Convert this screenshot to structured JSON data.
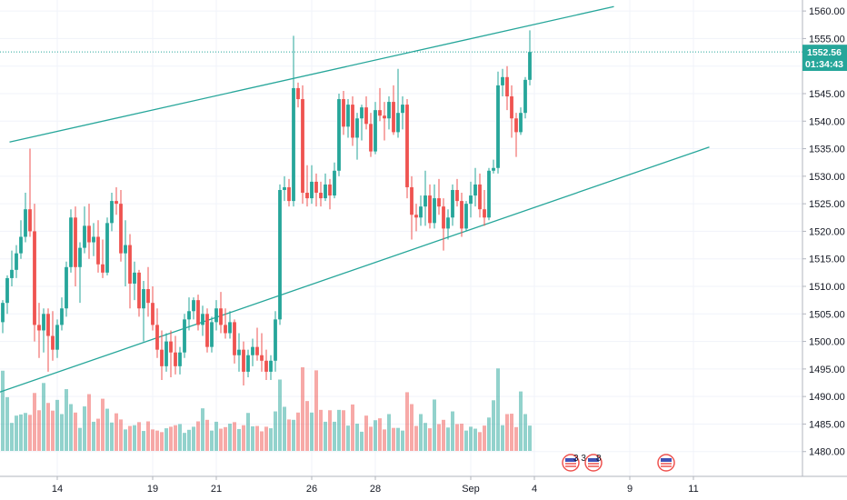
{
  "chart_data": {
    "type": "candlestick",
    "y_axis": {
      "range": [
        1475.5,
        1562
      ],
      "ticks": [
        "1560.00",
        "1555.00",
        "1550.00",
        "1545.00",
        "1540.00",
        "1535.00",
        "1530.00",
        "1525.00",
        "1520.00",
        "1515.00",
        "1510.00",
        "1505.00",
        "1500.00",
        "1495.00",
        "1490.00",
        "1485.00",
        "1480.00"
      ],
      "tick_values": [
        1560,
        1555,
        1550,
        1545,
        1540,
        1535,
        1530,
        1525,
        1520,
        1515,
        1510,
        1505,
        1500,
        1495,
        1490,
        1485,
        1480
      ]
    },
    "x_axis": {
      "ticks": [
        "14",
        "19",
        "21",
        "26",
        "28",
        "Sep",
        "4",
        "9",
        "11"
      ],
      "tick_index": [
        12,
        33,
        47,
        68,
        82,
        103,
        117,
        138,
        152
      ]
    },
    "last_price": {
      "label": "1552.56",
      "value": 1552.56
    },
    "countdown": "01:34:43",
    "up_color": "#26a69a",
    "down_color": "#ef5350",
    "trend_lines": [
      {
        "color": "#26a69a",
        "points": [
          [
            1.5,
            1536.2
          ],
          [
            134.5,
            1560.8
          ]
        ]
      },
      {
        "color": "#26a69a",
        "points": [
          [
            -1,
            1490.7
          ],
          [
            155.5,
            1535.3
          ]
        ]
      }
    ],
    "events": [
      {
        "index": 125,
        "label": "3 3 2"
      },
      {
        "index": 130,
        "label": "8"
      },
      {
        "index": 146,
        "label": ""
      }
    ],
    "candles": [
      [
        1503.5,
        1507.5,
        1501.5,
        1507.0,
        20.9
      ],
      [
        1507.0,
        1512.0,
        1505.0,
        1511.5,
        14.0
      ],
      [
        1511.5,
        1516.5,
        1510.0,
        1513.0,
        7.3
      ],
      [
        1513.0,
        1517.5,
        1511.5,
        1516.0,
        9.2
      ],
      [
        1516.0,
        1522.0,
        1515.0,
        1519.0,
        9.5
      ],
      [
        1519.0,
        1527.0,
        1518.0,
        1524.0,
        9.9
      ],
      [
        1524.0,
        1535.0,
        1519.0,
        1520.0,
        9.4
      ],
      [
        1520.0,
        1525.0,
        1500.0,
        1503.0,
        15.1
      ],
      [
        1503.0,
        1507.0,
        1497.0,
        1502.0,
        10.6
      ],
      [
        1502.0,
        1506.0,
        1498.0,
        1505.0,
        17.7
      ],
      [
        1505.0,
        1506.0,
        1494.5,
        1501.0,
        12.5
      ],
      [
        1501.0,
        1505.5,
        1496.5,
        1498.5,
        10.5
      ],
      [
        1498.5,
        1504.0,
        1497.0,
        1503.0,
        13.3
      ],
      [
        1503.0,
        1508.0,
        1502.0,
        1506.0,
        9.6
      ],
      [
        1506.0,
        1514.5,
        1504.5,
        1513.5,
        16.1
      ],
      [
        1513.5,
        1524.0,
        1512.5,
        1522.5,
        12.2
      ],
      [
        1522.5,
        1524.5,
        1510.0,
        1513.5,
        10.0
      ],
      [
        1513.5,
        1518.0,
        1507.0,
        1517.0,
        6.0
      ],
      [
        1517.0,
        1524.5,
        1516.0,
        1521.0,
        11.6
      ],
      [
        1521.0,
        1525.0,
        1515.0,
        1518.0,
        14.8
      ],
      [
        1518.0,
        1521.5,
        1515.5,
        1519.0,
        7.6
      ],
      [
        1519.0,
        1522.0,
        1512.5,
        1514.0,
        8.4
      ],
      [
        1514.0,
        1518.5,
        1511.5,
        1512.5,
        13.6
      ],
      [
        1512.5,
        1522.5,
        1512.0,
        1521.5,
        11.0
      ],
      [
        1521.5,
        1527.0,
        1520.0,
        1525.5,
        7.4
      ],
      [
        1525.5,
        1528.0,
        1523.0,
        1525.0,
        9.8
      ],
      [
        1525.0,
        1527.5,
        1514.5,
        1516.0,
        8.2
      ],
      [
        1516.0,
        1522.0,
        1510.0,
        1517.5,
        5.6
      ],
      [
        1517.5,
        1519.5,
        1506.0,
        1510.5,
        6.5
      ],
      [
        1510.5,
        1514.5,
        1507.5,
        1512.5,
        6.7
      ],
      [
        1512.5,
        1513.0,
        1504.5,
        1506.0,
        7.5
      ],
      [
        1506.0,
        1511.0,
        1500.0,
        1509.5,
        5.2
      ],
      [
        1509.5,
        1513.5,
        1504.5,
        1507.0,
        7.7
      ],
      [
        1507.0,
        1510.0,
        1502.0,
        1503.0,
        5.6
      ],
      [
        1503.0,
        1506.0,
        1497.0,
        1498.5,
        5.3
      ],
      [
        1498.5,
        1502.0,
        1493.0,
        1495.5,
        4.9
      ],
      [
        1495.5,
        1501.5,
        1494.5,
        1500.0,
        5.9
      ],
      [
        1500.0,
        1502.0,
        1493.5,
        1498.0,
        6.3
      ],
      [
        1498.0,
        1501.0,
        1494.0,
        1495.5,
        6.7
      ],
      [
        1495.5,
        1499.0,
        1494.0,
        1498.0,
        7.0
      ],
      [
        1498.0,
        1505.0,
        1497.0,
        1504.0,
        4.7
      ],
      [
        1504.0,
        1508.0,
        1502.0,
        1505.5,
        5.5
      ],
      [
        1505.5,
        1508.0,
        1504.0,
        1507.5,
        6.3
      ],
      [
        1507.5,
        1508.5,
        1502.0,
        1503.0,
        7.7
      ],
      [
        1503.0,
        1506.5,
        1501.0,
        1505.0,
        11.1
      ],
      [
        1505.0,
        1506.0,
        1498.0,
        1499.0,
        8.1
      ],
      [
        1499.0,
        1504.5,
        1498.0,
        1503.5,
        5.3
      ],
      [
        1503.5,
        1507.5,
        1502.0,
        1506.0,
        7.6
      ],
      [
        1506.0,
        1509.0,
        1501.5,
        1503.0,
        5.8
      ],
      [
        1503.0,
        1506.0,
        1500.5,
        1501.5,
        6.2
      ],
      [
        1501.5,
        1505.5,
        1500.5,
        1503.5,
        7.1
      ],
      [
        1503.5,
        1504.0,
        1496.0,
        1497.5,
        7.5
      ],
      [
        1497.5,
        1501.5,
        1494.5,
        1498.5,
        5.7
      ],
      [
        1498.5,
        1500.0,
        1492.0,
        1494.5,
        6.7
      ],
      [
        1494.5,
        1498.5,
        1493.5,
        1497.5,
        9.9
      ],
      [
        1497.5,
        1500.5,
        1495.5,
        1499.0,
        6.4
      ],
      [
        1499.0,
        1502.5,
        1496.5,
        1497.5,
        6.5
      ],
      [
        1497.5,
        1501.5,
        1494.5,
        1496.5,
        5.1
      ],
      [
        1496.5,
        1498.5,
        1493.0,
        1494.5,
        6.3
      ],
      [
        1494.5,
        1497.5,
        1493.0,
        1496.5,
        5.9
      ],
      [
        1496.5,
        1505.5,
        1494.5,
        1504.0,
        10.3
      ],
      [
        1504.0,
        1528.5,
        1503.0,
        1527.5,
        18.6
      ],
      [
        1527.5,
        1530.0,
        1525.5,
        1528.0,
        11.5
      ],
      [
        1528.0,
        1529.5,
        1524.5,
        1525.5,
        8.2
      ],
      [
        1525.5,
        1555.5,
        1524.5,
        1546.0,
        8.1
      ],
      [
        1546.0,
        1547.0,
        1542.5,
        1544.0,
        10.0
      ],
      [
        1544.0,
        1546.5,
        1525.0,
        1527.0,
        21.8
      ],
      [
        1527.0,
        1532.0,
        1524.5,
        1526.0,
        13.0
      ],
      [
        1526.0,
        1532.0,
        1525.0,
        1529.0,
        10.0
      ],
      [
        1529.0,
        1530.5,
        1524.5,
        1527.0,
        21.0
      ],
      [
        1527.0,
        1529.0,
        1524.5,
        1526.0,
        10.7
      ],
      [
        1526.0,
        1530.5,
        1525.5,
        1528.5,
        7.6
      ],
      [
        1528.5,
        1529.5,
        1524.0,
        1526.5,
        10.6
      ],
      [
        1526.5,
        1532.5,
        1526.0,
        1531.0,
        7.6
      ],
      [
        1531.0,
        1545.0,
        1530.0,
        1544.0,
        10.7
      ],
      [
        1544.0,
        1545.5,
        1537.5,
        1539.0,
        10.6
      ],
      [
        1539.0,
        1544.0,
        1537.0,
        1543.0,
        6.6
      ],
      [
        1543.0,
        1544.5,
        1535.5,
        1537.0,
        12.1
      ],
      [
        1537.0,
        1541.5,
        1533.0,
        1540.5,
        7.1
      ],
      [
        1540.5,
        1543.0,
        1536.5,
        1542.5,
        5.0
      ],
      [
        1542.5,
        1544.5,
        1538.5,
        1539.5,
        9.2
      ],
      [
        1539.5,
        1541.5,
        1533.5,
        1534.5,
        6.3
      ],
      [
        1534.5,
        1543.5,
        1534.0,
        1542.0,
        8.0
      ],
      [
        1542.0,
        1546.0,
        1540.0,
        1541.0,
        8.5
      ],
      [
        1541.0,
        1543.5,
        1536.5,
        1540.5,
        5.6
      ],
      [
        1540.5,
        1544.5,
        1538.5,
        1543.5,
        9.6
      ],
      [
        1543.5,
        1546.5,
        1537.5,
        1538.0,
        6.0
      ],
      [
        1538.0,
        1549.5,
        1537.0,
        1541.5,
        6.0
      ],
      [
        1541.5,
        1544.5,
        1538.5,
        1543.0,
        5.3
      ],
      [
        1543.0,
        1544.0,
        1526.0,
        1528.0,
        15.3
      ],
      [
        1528.0,
        1530.0,
        1518.5,
        1523.0,
        12.2
      ],
      [
        1523.0,
        1525.0,
        1520.0,
        1522.5,
        6.5
      ],
      [
        1522.5,
        1526.5,
        1521.0,
        1524.5,
        9.6
      ],
      [
        1524.5,
        1531.0,
        1521.0,
        1526.5,
        7.3
      ],
      [
        1526.5,
        1528.5,
        1520.5,
        1521.5,
        5.9
      ],
      [
        1521.5,
        1528.5,
        1520.5,
        1526.0,
        13.4
      ],
      [
        1526.0,
        1529.5,
        1523.0,
        1524.5,
        7.0
      ],
      [
        1524.5,
        1526.0,
        1516.5,
        1520.5,
        8.1
      ],
      [
        1520.5,
        1524.0,
        1518.5,
        1522.5,
        6.1
      ],
      [
        1522.5,
        1528.5,
        1521.0,
        1527.5,
        10.3
      ],
      [
        1527.5,
        1529.5,
        1524.5,
        1525.5,
        7.0
      ],
      [
        1525.5,
        1527.0,
        1519.0,
        1520.5,
        7.1
      ],
      [
        1520.5,
        1525.5,
        1520.0,
        1525.0,
        5.3
      ],
      [
        1525.0,
        1529.0,
        1522.5,
        1526.5,
        6.3
      ],
      [
        1526.5,
        1531.5,
        1524.5,
        1528.5,
        5.8
      ],
      [
        1528.5,
        1530.5,
        1522.5,
        1524.0,
        4.9
      ],
      [
        1524.0,
        1527.5,
        1521.0,
        1522.5,
        6.6
      ],
      [
        1522.5,
        1531.5,
        1522.0,
        1531.0,
        8.7
      ],
      [
        1531.0,
        1533.0,
        1530.5,
        1531.5,
        13.2
      ],
      [
        1531.5,
        1549.0,
        1530.5,
        1546.5,
        21.5
      ],
      [
        1546.5,
        1549.5,
        1544.5,
        1548.0,
        6.7
      ],
      [
        1548.0,
        1550.0,
        1542.0,
        1544.5,
        9.6
      ],
      [
        1544.5,
        1546.5,
        1537.0,
        1540.5,
        9.7
      ],
      [
        1540.5,
        1541.5,
        1533.5,
        1538.0,
        6.2
      ],
      [
        1538.0,
        1542.5,
        1537.5,
        1541.5,
        15.5
      ],
      [
        1541.5,
        1548.0,
        1540.5,
        1547.5,
        9.6
      ],
      [
        1547.5,
        1556.5,
        1546.5,
        1552.56,
        6.6
      ]
    ]
  }
}
